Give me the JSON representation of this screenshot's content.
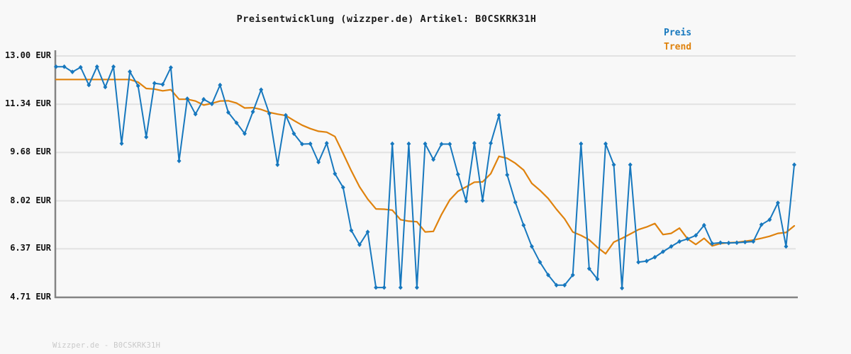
{
  "title": "Preisentwicklung (wizzper.de) Artikel: B0CSKRK31H",
  "watermark": "Wizzper.de - B0CSKRK31H",
  "legend": {
    "preis_label": "Preis",
    "trend_label": "Trend"
  },
  "colors": {
    "preis": "#1778be",
    "trend": "#df820d",
    "background": "#f8f8f8",
    "grid": "#e2e2e2",
    "axis": "#848484",
    "title_text": "#1a1a1a",
    "watermark_text": "#c9c9c9"
  },
  "chart_data": {
    "type": "line",
    "title": "Preisentwicklung (wizzper.de) Artikel: B0CSKRK31H",
    "xlabel": "",
    "ylabel": "",
    "currency": "EUR",
    "grid": true,
    "legend_position": "top-right",
    "y_ticks": [
      13.0,
      11.34,
      9.68,
      8.02,
      6.37,
      4.71
    ],
    "y_tick_labels": [
      "13.00 EUR",
      "11.34 EUR",
      "9.68 EUR",
      "8.02 EUR",
      "6.37 EUR",
      "4.71 EUR"
    ],
    "ylim": [
      4.71,
      13.0
    ],
    "x_unit": "time-index",
    "series": [
      {
        "name": "Preis",
        "color": "#1778be",
        "marker": "diamond",
        "values": [
          12.63,
          12.63,
          12.45,
          12.61,
          12.0,
          12.63,
          11.93,
          12.63,
          9.99,
          12.46,
          11.97,
          10.21,
          12.06,
          12.02,
          12.6,
          9.39,
          11.53,
          11.0,
          11.51,
          11.35,
          12.0,
          11.06,
          10.7,
          10.33,
          11.08,
          11.84,
          11.02,
          9.26,
          10.96,
          10.33,
          9.97,
          9.98,
          9.35,
          10.0,
          8.95,
          8.48,
          7.0,
          6.51,
          6.95,
          5.04,
          5.04,
          9.98,
          5.04,
          9.98,
          5.04,
          9.98,
          9.44,
          9.97,
          9.97,
          8.93,
          8.01,
          10.0,
          8.03,
          10.0,
          10.96,
          8.91,
          7.97,
          7.18,
          6.45,
          5.91,
          5.47,
          5.12,
          5.12,
          5.47,
          9.98,
          5.69,
          5.33,
          9.98,
          9.26,
          5.02,
          9.26,
          5.91,
          5.95,
          6.08,
          6.27,
          6.45,
          6.62,
          6.71,
          6.83,
          7.18,
          6.55,
          6.58,
          6.57,
          6.58,
          6.6,
          6.62,
          7.2,
          7.37,
          7.95,
          6.45,
          9.26
        ]
      },
      {
        "name": "Trend",
        "color": "#df820d",
        "marker": "none",
        "values": [
          12.19,
          12.19,
          12.19,
          12.19,
          12.19,
          12.19,
          12.19,
          12.19,
          12.19,
          12.19,
          12.1,
          11.88,
          11.86,
          11.8,
          11.84,
          11.51,
          11.51,
          11.45,
          11.31,
          11.37,
          11.45,
          11.46,
          11.38,
          11.21,
          11.22,
          11.16,
          11.06,
          11.0,
          10.95,
          10.78,
          10.62,
          10.5,
          10.41,
          10.38,
          10.23,
          9.65,
          9.05,
          8.5,
          8.08,
          7.74,
          7.73,
          7.7,
          7.37,
          7.32,
          7.3,
          6.95,
          6.97,
          7.55,
          8.05,
          8.35,
          8.5,
          8.66,
          8.67,
          8.95,
          9.55,
          9.48,
          9.31,
          9.08,
          8.62,
          8.38,
          8.1,
          7.73,
          7.4,
          6.95,
          6.83,
          6.68,
          6.42,
          6.2,
          6.6,
          6.73,
          6.88,
          7.03,
          7.12,
          7.24,
          6.86,
          6.9,
          7.08,
          6.71,
          6.52,
          6.73,
          6.47,
          6.55,
          6.58,
          6.59,
          6.63,
          6.67,
          6.73,
          6.8,
          6.9,
          6.93,
          7.16
        ]
      }
    ]
  }
}
